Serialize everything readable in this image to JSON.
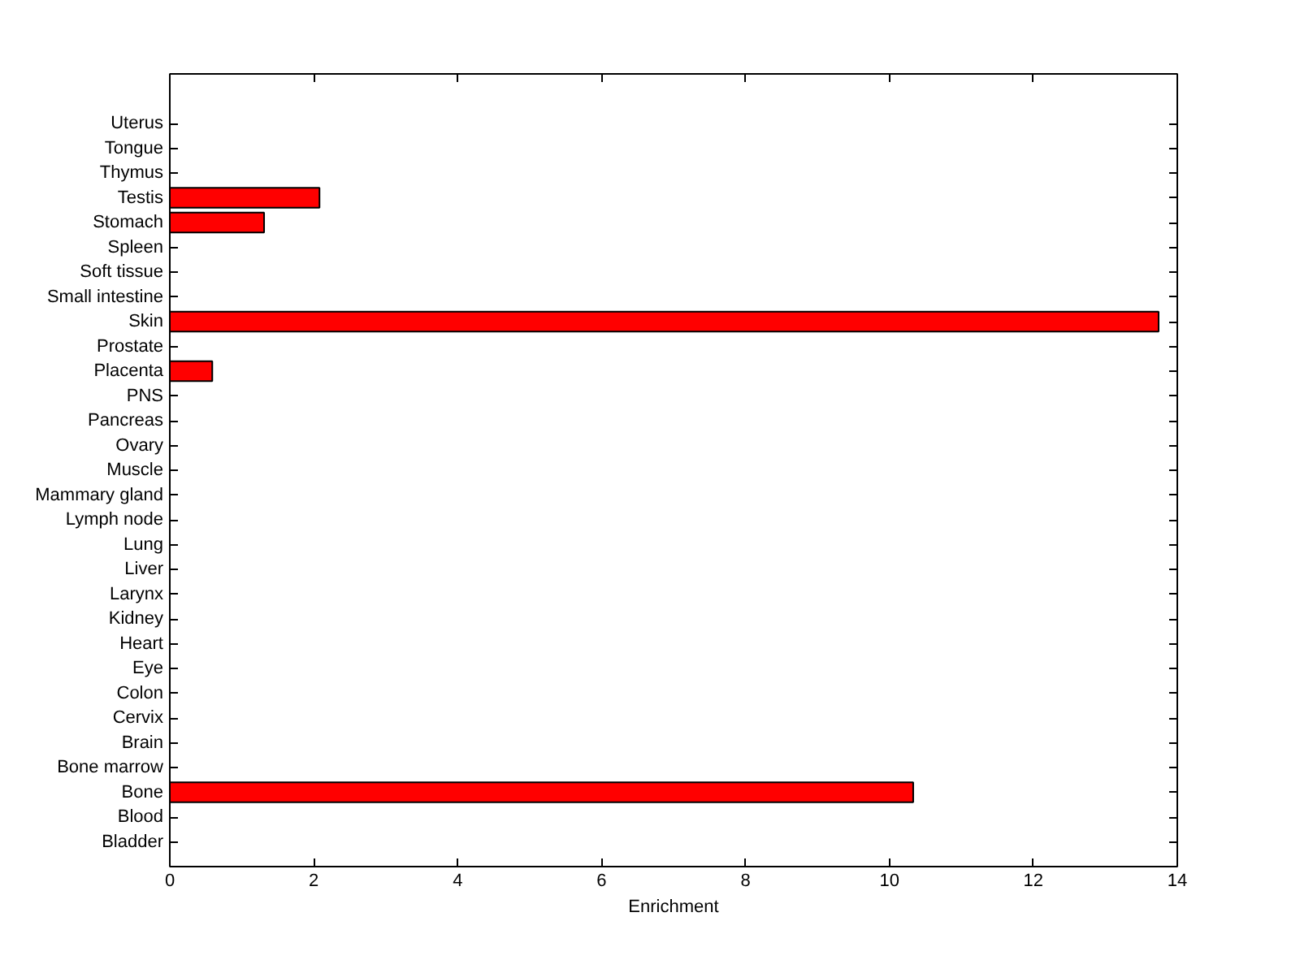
{
  "chart_data": {
    "type": "bar",
    "orientation": "horizontal",
    "xlabel": "Enrichment",
    "categories": [
      "Uterus",
      "Tongue",
      "Thymus",
      "Testis",
      "Stomach",
      "Spleen",
      "Soft tissue",
      "Small intestine",
      "Skin",
      "Prostate",
      "Placenta",
      "PNS",
      "Pancreas",
      "Ovary",
      "Muscle",
      "Mammary gland",
      "Lymph node",
      "Lung",
      "Liver",
      "Larynx",
      "Kidney",
      "Heart",
      "Eye",
      "Colon",
      "Cervix",
      "Brain",
      "Bone marrow",
      "Bone",
      "Blood",
      "Bladder"
    ],
    "values": [
      0,
      0,
      0,
      2.08,
      1.31,
      0,
      0,
      0,
      13.74,
      0,
      0.59,
      0,
      0,
      0,
      0,
      0,
      0,
      0,
      0,
      0,
      0,
      0,
      0,
      0,
      0,
      0,
      0,
      10.33,
      0,
      0
    ],
    "color": "#ff0000",
    "xlim": [
      0,
      14
    ],
    "xticks": [
      0,
      2,
      4,
      6,
      8,
      10,
      12,
      14
    ]
  }
}
